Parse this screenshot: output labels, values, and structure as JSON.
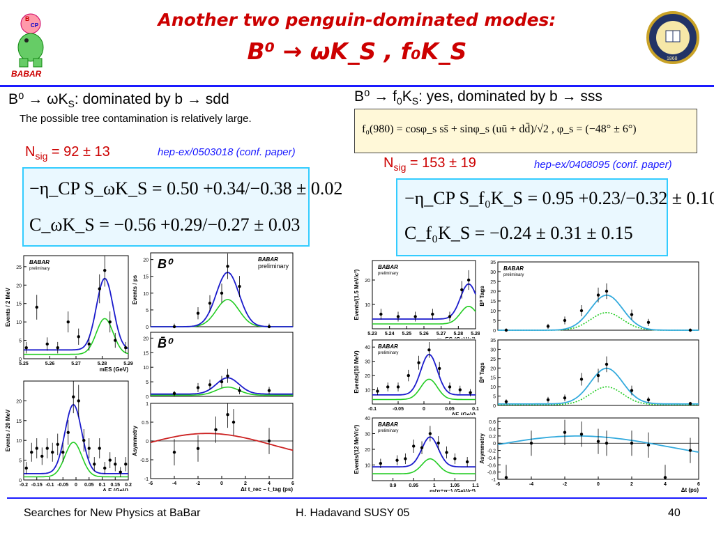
{
  "title": {
    "line1": "Another two penguin-dominated modes:",
    "line2": "B⁰ → ωK_S , f₀K_S"
  },
  "left": {
    "header_main": "B⁰ → ωK",
    "header_sub": "S",
    "header_rest": ": dominated by b → sdd",
    "note": "The possible tree contamination is relatively large.",
    "nsig_label": "N",
    "nsig_sub": "sig",
    "nsig_value": "= 92 ± 13",
    "ref": "hep-ex/0503018 (conf. paper)",
    "s_line": "−η_CP S_ωK_S = 0.50 +0.34/−0.38 ± 0.02",
    "c_line": "C_ωK_S = −0.56 +0.29/−0.27 ± 0.03"
  },
  "right": {
    "header_main": "B⁰ → f",
    "header_sub": "0",
    "header_mid": "K",
    "header_sub2": "S",
    "header_rest": ": yes, dominated by b → sss",
    "formula": "f₀(980) = cosφ_s ss̄ + sinφ_s (uū + dd̄)/√2 ,  φ_s = (−48° ± 6°)",
    "nsig_label": "N",
    "nsig_sub": "sig",
    "nsig_value": "= 153 ± 19",
    "ref": "hep-ex/0408095 (conf. paper)",
    "s_line": "−η_CP S_f₀K_S = 0.95 +0.23/−0.32 ± 0.10",
    "c_line": "C_f₀K_S = −0.24 ± 0.31 ± 0.15"
  },
  "footer": {
    "left": "Searches for New Physics at BaBar",
    "center": "H. Hadavand  SUSY 05",
    "page": "40"
  },
  "colors": {
    "title": "#cc0000",
    "rule": "#1a1aff",
    "box_border": "#33ccff",
    "fit_total": "#1a1acc",
    "fit_signal": "#22cc22",
    "fit_bkg": "#cc2222",
    "fit_cyan": "#33aadd"
  },
  "logos": {
    "babar": "BABAR",
    "seal": "1868"
  },
  "chart_data": [
    {
      "type": "scatter",
      "id": "omega-mes",
      "panel_label": "BABAR",
      "panel_sublabel": "preliminary",
      "xlabel": "mES (GeV)",
      "ylabel": "Events / 2 MeV",
      "xlim": [
        5.25,
        5.29
      ],
      "ylim": [
        0,
        28
      ],
      "x_ticks": [
        "5.25",
        "5.26",
        "5.27",
        "5.28",
        "5.29"
      ],
      "y_ticks": [
        "0",
        "5",
        "10",
        "15",
        "20",
        "25"
      ],
      "x": [
        5.251,
        5.255,
        5.259,
        5.263,
        5.267,
        5.271,
        5.275,
        5.279,
        5.281,
        5.283,
        5.285,
        5.289
      ],
      "y": [
        3,
        14,
        4,
        3,
        10,
        6,
        4,
        19,
        24,
        10,
        5,
        3
      ]
    },
    {
      "type": "scatter",
      "id": "omega-de",
      "xlabel": "Δ E (GeV)",
      "ylabel": "Events / 20 MeV",
      "xlim": [
        -0.2,
        0.2
      ],
      "ylim": [
        0,
        25
      ],
      "x_ticks": [
        "-0.2",
        "-0.15",
        "-0.1",
        "-0.05",
        "0",
        "0.05",
        "0.1",
        "0.15",
        "0.2"
      ],
      "y_ticks": [
        "0",
        "5",
        "10",
        "15",
        "20"
      ],
      "x": [
        -0.19,
        -0.17,
        -0.15,
        -0.13,
        -0.11,
        -0.09,
        -0.07,
        -0.05,
        -0.03,
        -0.01,
        0.01,
        0.03,
        0.05,
        0.07,
        0.09,
        0.11,
        0.13,
        0.15,
        0.17,
        0.19
      ],
      "y": [
        3,
        7,
        8,
        6,
        8,
        7,
        9,
        7,
        12,
        21,
        20,
        10,
        8,
        4,
        8,
        3,
        5,
        4,
        2,
        4
      ]
    },
    {
      "type": "scatter",
      "id": "omega-dt-b0",
      "panel_label": "B⁰",
      "label2": "BABAR",
      "label2_sub": "preliminary",
      "ylabel": "Events / ps",
      "xlim": [
        -6,
        6
      ],
      "ylim": [
        0,
        22
      ],
      "y_ticks": [
        "0",
        "5",
        "10",
        "15",
        "20"
      ],
      "x": [
        -4,
        -2,
        -1,
        0,
        0.5,
        1.5,
        4
      ],
      "y": [
        0,
        4,
        7,
        10,
        18,
        12,
        0
      ]
    },
    {
      "type": "scatter",
      "id": "omega-dt-b0bar",
      "panel_label": "B̄⁰",
      "xlim": [
        -6,
        6
      ],
      "ylim": [
        0,
        22
      ],
      "y_ticks": [
        "0",
        "5",
        "10",
        "15",
        "20"
      ],
      "x": [
        -4,
        -2,
        -1,
        0,
        0.5,
        1.5,
        4
      ],
      "y": [
        1,
        3,
        4,
        5,
        7,
        2,
        2
      ]
    },
    {
      "type": "scatter",
      "id": "omega-asym",
      "xlabel": "Δt  t_rec − t_tag (ps)",
      "ylabel": "Asymmetry",
      "xlim": [
        -6,
        6
      ],
      "ylim": [
        -1,
        1
      ],
      "x_ticks": [
        "-6",
        "-4",
        "-2",
        "0",
        "2",
        "4",
        "6"
      ],
      "y_ticks": [
        "-1",
        "-0.5",
        "0",
        "0.5",
        "1"
      ],
      "x": [
        -4,
        -2,
        -0.5,
        0.5,
        1,
        4
      ],
      "y": [
        -0.3,
        -0.2,
        0.3,
        0.7,
        0.5,
        0
      ]
    },
    {
      "type": "scatter",
      "id": "f0-mes",
      "panel_label": "BABAR",
      "panel_sublabel": "preliminary",
      "xlabel": "m_ES (GeV/c²)",
      "ylabel": "Events/(1.5 MeV/c²)",
      "xlim": [
        5.23,
        5.29
      ],
      "ylim": [
        0,
        28
      ],
      "x_ticks": [
        "5.23",
        "5.24",
        "5.25",
        "5.26",
        "5.27",
        "5.28",
        "5.29"
      ],
      "y_ticks": [
        "10",
        "20"
      ],
      "x": [
        5.235,
        5.245,
        5.255,
        5.265,
        5.275,
        5.282,
        5.286
      ],
      "y": [
        6,
        5,
        5,
        6,
        5,
        16,
        20
      ]
    },
    {
      "type": "scatter",
      "id": "f0-de",
      "panel_label": "BABAR",
      "panel_sublabel": "preliminary",
      "xlabel": "ΔE (GeV)",
      "ylabel": "Events/(10 MeV)",
      "xlim": [
        -0.1,
        0.1
      ],
      "ylim": [
        0,
        45
      ],
      "x_ticks": [
        "-0.1",
        "-0.05",
        "0",
        "0.05",
        "0.1"
      ],
      "y_ticks": [
        "10",
        "20",
        "30",
        "40"
      ],
      "x": [
        -0.09,
        -0.07,
        -0.05,
        -0.03,
        -0.01,
        0.01,
        0.03,
        0.05,
        0.07,
        0.09
      ],
      "y": [
        9,
        12,
        12,
        20,
        29,
        38,
        25,
        12,
        10,
        8
      ]
    },
    {
      "type": "scatter",
      "id": "f0-mass",
      "panel_label": "BABAR",
      "panel_sublabel": "preliminary",
      "xlabel": "m(π⁺π⁻) (GeV/c²)",
      "ylabel": "Events/(12 MeV/c²)",
      "xlim": [
        0.85,
        1.1
      ],
      "ylim": [
        0,
        40
      ],
      "x_ticks": [
        "0.9",
        "0.95",
        "1",
        "1.05",
        "1.1"
      ],
      "y_ticks": [
        "10",
        "20",
        "30",
        "40"
      ],
      "x": [
        0.87,
        0.91,
        0.93,
        0.95,
        0.97,
        0.99,
        1.01,
        1.03,
        1.05,
        1.08
      ],
      "y": [
        11,
        13,
        14,
        22,
        21,
        30,
        24,
        18,
        14,
        12
      ]
    },
    {
      "type": "scatter",
      "id": "f0-dt-b0",
      "panel_label": "BABAR",
      "panel_sublabel": "preliminary",
      "ylabel": "B⁰ Tags",
      "xlim": [
        -6,
        6
      ],
      "ylim": [
        0,
        35
      ],
      "y_ticks": [
        "0",
        "5",
        "10",
        "15",
        "20",
        "25",
        "30",
        "35"
      ],
      "x": [
        -5.5,
        -3,
        -2,
        -1,
        0,
        0.5,
        2,
        3,
        5.5
      ],
      "y": [
        0,
        2,
        5,
        10,
        18,
        20,
        8,
        4,
        0
      ]
    },
    {
      "type": "scatter",
      "id": "f0-dt-b0bar",
      "ylabel": "B̄⁰ Tags",
      "xlim": [
        -6,
        6
      ],
      "ylim": [
        0,
        35
      ],
      "y_ticks": [
        "0",
        "5",
        "10",
        "15",
        "20",
        "25",
        "30",
        "35"
      ],
      "x": [
        -5.5,
        -3,
        -2,
        -1,
        0,
        0.5,
        2,
        3,
        5.5
      ],
      "y": [
        2,
        3,
        4,
        14,
        16,
        22,
        8,
        3,
        1
      ]
    },
    {
      "type": "scatter",
      "id": "f0-asym",
      "xlabel": "Δt (ps)",
      "ylabel": "Asymmetry",
      "xlim": [
        -6,
        6
      ],
      "ylim": [
        -1,
        0.7
      ],
      "x_ticks": [
        "-6",
        "-4",
        "-2",
        "0",
        "2",
        "4",
        "6"
      ],
      "y_ticks": [
        "-1",
        "-0.8",
        "-0.6",
        "-0.4",
        "-0.2",
        "0",
        "0.2",
        "0.4",
        "0.6"
      ],
      "x": [
        -5.5,
        -4,
        -2,
        -1,
        0,
        0.5,
        2,
        3,
        4,
        5.5
      ],
      "y": [
        -0.95,
        0,
        0.3,
        0.25,
        0.05,
        0,
        0,
        -0.05,
        -0.95,
        -0.2
      ]
    }
  ]
}
